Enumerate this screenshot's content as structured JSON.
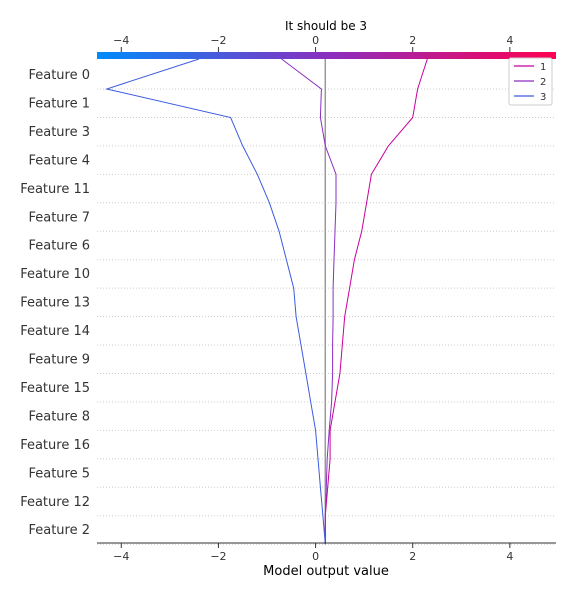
{
  "chart_data": {
    "type": "line",
    "title": "It should be 3",
    "xlabel": "Model output value",
    "ylabel": "",
    "xlim": [
      -4.5,
      4.95
    ],
    "x_ticks": [
      -4,
      -2,
      0,
      2,
      4
    ],
    "x_tick_labels": [
      "−4",
      "−2",
      "0",
      "2",
      "4"
    ],
    "colorbar": {
      "position": "top",
      "low_color": "#008bfb",
      "high_color": "#ff0052"
    },
    "baseline": {
      "value": 0.2,
      "color": "#999999"
    },
    "features": [
      "Feature 0",
      "Feature 1",
      "Feature 3",
      "Feature 4",
      "Feature 11",
      "Feature 7",
      "Feature 6",
      "Feature 10",
      "Feature 13",
      "Feature 14",
      "Feature 9",
      "Feature 15",
      "Feature 8",
      "Feature 16",
      "Feature 5",
      "Feature 12",
      "Feature 2"
    ],
    "grid": "dotted horizontal",
    "legend": {
      "placement": "top-right",
      "entries": [
        "1",
        "2",
        "3"
      ]
    },
    "series": [
      {
        "name": "1",
        "color": "#c8009c",
        "values": [
          2.3,
          2.1,
          2.0,
          1.5,
          1.15,
          1.05,
          0.95,
          0.8,
          0.7,
          0.6,
          0.55,
          0.5,
          0.4,
          0.3,
          0.3,
          0.25,
          0.2,
          0.2
        ]
      },
      {
        "name": "2",
        "color": "#8a2fbf",
        "values": [
          -0.7,
          0.12,
          0.1,
          0.2,
          0.42,
          0.42,
          0.4,
          0.38,
          0.36,
          0.36,
          0.35,
          0.35,
          0.33,
          0.28,
          0.24,
          0.22,
          0.2,
          0.2
        ]
      },
      {
        "name": "3",
        "color": "#3c5be0",
        "values": [
          -2.4,
          -4.3,
          -1.75,
          -1.5,
          -1.2,
          -0.95,
          -0.75,
          -0.6,
          -0.45,
          -0.4,
          -0.3,
          -0.2,
          -0.1,
          0.0,
          0.05,
          0.1,
          0.15,
          0.2
        ]
      }
    ]
  }
}
